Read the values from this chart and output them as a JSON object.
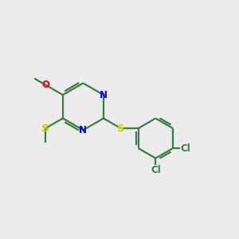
{
  "background_color": "#ebebeb",
  "bond_color": "#3a7d44",
  "n_color": "#0000ff",
  "o_color": "#ff0000",
  "s_color": "#cccc00",
  "cl_color": "#3a7d44",
  "figsize": [
    3.0,
    3.0
  ],
  "dpi": 100,
  "xlim": [
    0,
    10
  ],
  "ylim": [
    0,
    10
  ],
  "lw": 1.6,
  "fs": 8.5
}
